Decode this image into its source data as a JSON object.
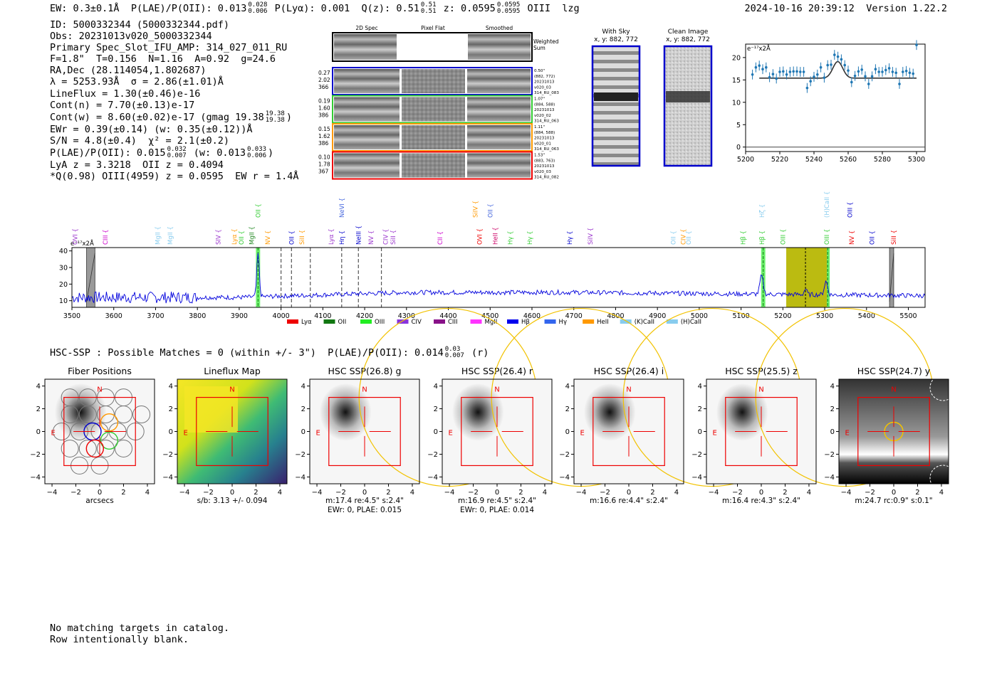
{
  "header": {
    "ew": "EW: 0.3±0.1Å",
    "plae_label": "P(LAE)/P(OII): 0.013",
    "plae_hi": "0.028",
    "plae_lo": "0.006",
    "plya": "P(Lyα): 0.001",
    "q_label": "Q(z): 0.51",
    "q_hi": "0.51",
    "q_lo": "0.51",
    "z_label": "z: 0.0595",
    "z_hi": "0.0595",
    "z_lo": "0.0595",
    "line_name": "OIII",
    "flag": "lzg",
    "timestamp": "2024-10-16 20:39:12",
    "version": "Version 1.22.2"
  },
  "info_lines": [
    "ID: 5000332344 (5000332344.pdf)",
    "Obs: 20231013v020_5000332344",
    "Primary Spec_Slot_IFU_AMP: 314_027_011_RU",
    "F=1.8\"  T=0.156  N=1.16  A=0.92  g=24.6",
    "RA,Dec (28.114054,1.802687)",
    "λ = 5253.93Å  σ = 2.86(±1.01)Å",
    "LineFlux = 1.30(±0.46)e-16",
    "Cont(n) = 7.70(±0.13)e-17"
  ],
  "info_cont_w": {
    "text": "Cont(w) = 8.60(±0.02)e-17 (gmag 19.38",
    "hi": "19.38",
    "lo": "19.38",
    "close": ")"
  },
  "info_lines2": [
    "EWr = 0.39(±0.14) (w: 0.35(±0.12))Å",
    "S/N = 4.8(±0.4)  χ² = 2.1(±0.2)"
  ],
  "info_plae": {
    "text": "P(LAE)/P(OII): 0.015",
    "hi": "0.032",
    "lo": "0.007",
    "mid": "(w: 0.013",
    "hi2": "0.033",
    "lo2": "0.006",
    "close": ")"
  },
  "info_lines3": [
    "LyA z = 3.3218  OII z = 0.4094",
    "*Q(0.98) OIII(4959) z = 0.0595  EW r = 1.4Å"
  ],
  "cutouts": {
    "col_titles": [
      "2D Spec",
      "Pixel Flat",
      "Smoothed"
    ],
    "weighted_sum": [
      "Weighted",
      "Sum"
    ],
    "rows": [
      {
        "left": [
          "0.27",
          "2.02",
          "366"
        ],
        "right": [
          "0.50\"",
          "(882, 772)",
          "20231013",
          "v020_03",
          "314_RU_083"
        ],
        "color": "#0000cc"
      },
      {
        "left": [
          "0.19",
          "1.60",
          "386"
        ],
        "right": [
          "1.07\"",
          "(884, 588)",
          "20231013",
          "v020_02",
          "314_RU_063"
        ],
        "color": "#33cc33"
      },
      {
        "left": [
          "0.15",
          "1.62",
          "386"
        ],
        "right": [
          "1.11\"",
          "(884, 588)",
          "20231013",
          "v020_01",
          "314_RU_063"
        ],
        "color": "#ff9900"
      },
      {
        "left": [
          "0.10",
          "1.78",
          "367"
        ],
        "right": [
          "1.53\"",
          "(883, 763)",
          "20231013",
          "v020_03",
          "314_RU_082"
        ],
        "color": "#ee0000"
      }
    ]
  },
  "sky": {
    "title1": "With Sky",
    "title2": "x, y: 882, 772",
    "clean1": "Clean Image",
    "clean2": "x, y: 882, 772"
  },
  "zoom_chart": {
    "type": "scatter",
    "ylabel": "e⁻¹⁷x2Å",
    "xlim": [
      5200,
      5305
    ],
    "ylim": [
      -1,
      23
    ],
    "xticks": [
      5200,
      5220,
      5240,
      5260,
      5280,
      5300
    ],
    "yticks": [
      0,
      5,
      10,
      15,
      20
    ],
    "points_x": [
      5204,
      5206,
      5208,
      5210,
      5212,
      5214,
      5216,
      5218,
      5220,
      5222,
      5224,
      5226,
      5228,
      5230,
      5232,
      5234,
      5236,
      5238,
      5240,
      5242,
      5244,
      5246,
      5248,
      5250,
      5252,
      5254,
      5256,
      5258,
      5260,
      5262,
      5264,
      5266,
      5268,
      5270,
      5272,
      5274,
      5276,
      5278,
      5280,
      5282,
      5284,
      5286,
      5288,
      5290,
      5292,
      5294,
      5296,
      5298,
      5300
    ],
    "points_y": [
      16.2,
      17.8,
      18.2,
      17.4,
      17.8,
      15.6,
      16.3,
      15.3,
      16.8,
      16.9,
      16.2,
      16.8,
      16.9,
      16.9,
      16.8,
      16.8,
      13.2,
      14.7,
      15.7,
      16.2,
      17.8,
      15.5,
      18.3,
      18.4,
      20.6,
      20.2,
      19.6,
      18.3,
      17.1,
      14.5,
      15.9,
      16.9,
      17.3,
      15.8,
      14.1,
      15.8,
      17.4,
      16.8,
      16.8,
      17.2,
      17.6,
      16.8,
      16.6,
      14.1,
      16.8,
      17.0,
      16.6,
      16.4,
      22.8
    ],
    "fit_center": 5253.93,
    "fit_sigma": 2.86,
    "fit_cont": 15.4,
    "fit_amp": 3.7
  },
  "spectrum": {
    "type": "line",
    "ylabel": "e⁻¹⁷x2Å",
    "xlim": [
      3500,
      5540
    ],
    "ylim": [
      6,
      42
    ],
    "xticks": [
      3500,
      3600,
      3700,
      3800,
      3900,
      4000,
      4100,
      4200,
      4300,
      4400,
      4500,
      4600,
      4700,
      4800,
      4900,
      5000,
      5100,
      5200,
      5300,
      5400,
      5500
    ],
    "yticks": [
      10,
      20,
      30,
      40
    ],
    "lines_row1": [
      {
        "label": "OVI",
        "x": 3508,
        "color": "#9933cc"
      },
      {
        "label": "CIII",
        "x": 3580,
        "color": "#cc00cc"
      },
      {
        "label": "MgII",
        "x": 3705,
        "color": "#88ccee"
      },
      {
        "label": "MgII",
        "x": 3735,
        "color": "#88ccee"
      },
      {
        "label": "SIV",
        "x": 3850,
        "color": "#9933cc"
      },
      {
        "label": "Lyα",
        "x": 3888,
        "color": "#ff9900"
      },
      {
        "label": "OII",
        "x": 3905,
        "color": "#33cc33"
      },
      {
        "label": "MgII",
        "x": 3930,
        "color": "#228822"
      },
      {
        "label": "NV",
        "x": 3968,
        "color": "#ff9900"
      },
      {
        "label": "OII",
        "x": 4025,
        "color": "#0000cc"
      },
      {
        "label": "SiII",
        "x": 4050,
        "color": "#ff9900"
      },
      {
        "label": "Lyα",
        "x": 4120,
        "color": "#9933cc"
      },
      {
        "label": "Hη",
        "x": 4145,
        "color": "#0000cc"
      },
      {
        "label": "NeIII",
        "x": 4185,
        "color": "#0000cc"
      },
      {
        "label": "NV",
        "x": 4215,
        "color": "#9933cc"
      },
      {
        "label": "CIV",
        "x": 4250,
        "color": "#9933cc"
      },
      {
        "label": "SiII",
        "x": 4268,
        "color": "#9933cc"
      },
      {
        "label": "CII",
        "x": 4380,
        "color": "#cc00cc"
      },
      {
        "label": "OVI",
        "x": 4475,
        "color": "#ee0000"
      },
      {
        "label": "HeII",
        "x": 4512,
        "color": "#cc0066"
      },
      {
        "label": "Hγ",
        "x": 4548,
        "color": "#33cc33"
      },
      {
        "label": "Hγ",
        "x": 4595,
        "color": "#33cc33"
      },
      {
        "label": "Hγ",
        "x": 4690,
        "color": "#0000cc"
      },
      {
        "label": "SiIV",
        "x": 4740,
        "color": "#9933cc"
      },
      {
        "label": "OII",
        "x": 4938,
        "color": "#88ccee"
      },
      {
        "label": "CIV",
        "x": 4962,
        "color": "#ff9900"
      },
      {
        "label": "OII",
        "x": 4975,
        "color": "#88ccee"
      },
      {
        "label": "Hβ",
        "x": 5105,
        "color": "#33cc33"
      },
      {
        "label": "Hβ",
        "x": 5150,
        "color": "#33cc33"
      },
      {
        "label": "OIII",
        "x": 5200,
        "color": "#33cc33"
      },
      {
        "label": "OIII",
        "x": 5305,
        "color": "#33cc33"
      },
      {
        "label": "NV",
        "x": 5365,
        "color": "#ee0000"
      },
      {
        "label": "OII",
        "x": 5413,
        "color": "#0000cc"
      },
      {
        "label": "SiII",
        "x": 5465,
        "color": "#ee0000"
      }
    ],
    "lines_row2": [
      {
        "label": "NeVI",
        "x": 4145,
        "color": "#4466dd"
      },
      {
        "label": "OII",
        "x": 3945,
        "color": "#33cc33"
      },
      {
        "label": "SiIV",
        "x": 4465,
        "color": "#ff9900"
      },
      {
        "label": "OII",
        "x": 4500,
        "color": "#4466dd"
      },
      {
        "label": "Hζ",
        "x": 5150,
        "color": "#88ccee"
      },
      {
        "label": "(H)CaII",
        "x": 5305,
        "color": "#88ccee"
      },
      {
        "label": "OIII",
        "x": 5360,
        "color": "#0000cc"
      }
    ],
    "dashed_x": [
      4000,
      4025,
      4070,
      4145,
      4185,
      4240
    ],
    "green_bands": [
      [
        3940,
        3950
      ],
      [
        5148,
        5158
      ],
      [
        5302,
        5312
      ]
    ],
    "olive_band": [
      5208,
      5305
    ],
    "olive_dash": 5254,
    "gray_bands": [
      [
        3535,
        3555
      ],
      [
        5455,
        5465
      ]
    ],
    "legend": [
      {
        "label": "Lyα",
        "color": "#ee0000"
      },
      {
        "label": "OII",
        "color": "#117711"
      },
      {
        "label": "OIII",
        "color": "#22ee22"
      },
      {
        "label": "CIV",
        "color": "#8833dd"
      },
      {
        "label": "CIII",
        "color": "#881188"
      },
      {
        "label": "MgII",
        "color": "#ff33ff"
      },
      {
        "label": "Hβ",
        "color": "#0000ee"
      },
      {
        "label": "Hγ",
        "color": "#3366ee"
      },
      {
        "label": "HeII",
        "color": "#ff9900"
      },
      {
        "label": "(K)CaII",
        "color": "#88ccee"
      },
      {
        "label": "(H)CaII",
        "color": "#88ccee"
      }
    ]
  },
  "hsc": {
    "title": "HSC-SSP : Possible Matches = 0 (within +/- 3\")",
    "plae": "P(LAE)/P(OII): 0.014",
    "plae_hi": "0.03",
    "plae_lo": "0.007",
    "band": "(r)"
  },
  "panels": [
    {
      "title": "Fiber Positions",
      "cap1": "arcsecs",
      "cap2": ""
    },
    {
      "title": "Lineflux Map",
      "cap1": "s/b: 3.13 +/- 0.094",
      "cap2": ""
    },
    {
      "title": "HSC SSP(26.8) g",
      "cap1": "m:17.4  re:4.5\"  s:2.4\"",
      "cap2": "EWr: 0, PLAE: 0.015"
    },
    {
      "title": "HSC SSP(26.4) r",
      "cap1": "m:16.9  re:4.5\"  s:2.4\"",
      "cap2": "EWr: 0, PLAE: 0.014"
    },
    {
      "title": "HSC SSP(26.4) i",
      "cap1": "m:16.6  re:4.4\"  s:2.4\"",
      "cap2": ""
    },
    {
      "title": "HSC SSP(25.5) z",
      "cap1": "m:16.4  re:4.3\"  s:2.4\"",
      "cap2": ""
    },
    {
      "title": "HSC SSP(24.7) y",
      "cap1": "m:24.7  rc:0.9\"  s:0.1\"",
      "cap2": ""
    }
  ],
  "panel_axis": {
    "ticks": [
      -4,
      -2,
      0,
      2,
      4
    ],
    "ticks_y": [
      4,
      2,
      0,
      -2,
      -4
    ],
    "north": "N",
    "east": "E"
  },
  "footer": [
    "No matching targets in catalog.",
    "Row intentionally blank."
  ]
}
